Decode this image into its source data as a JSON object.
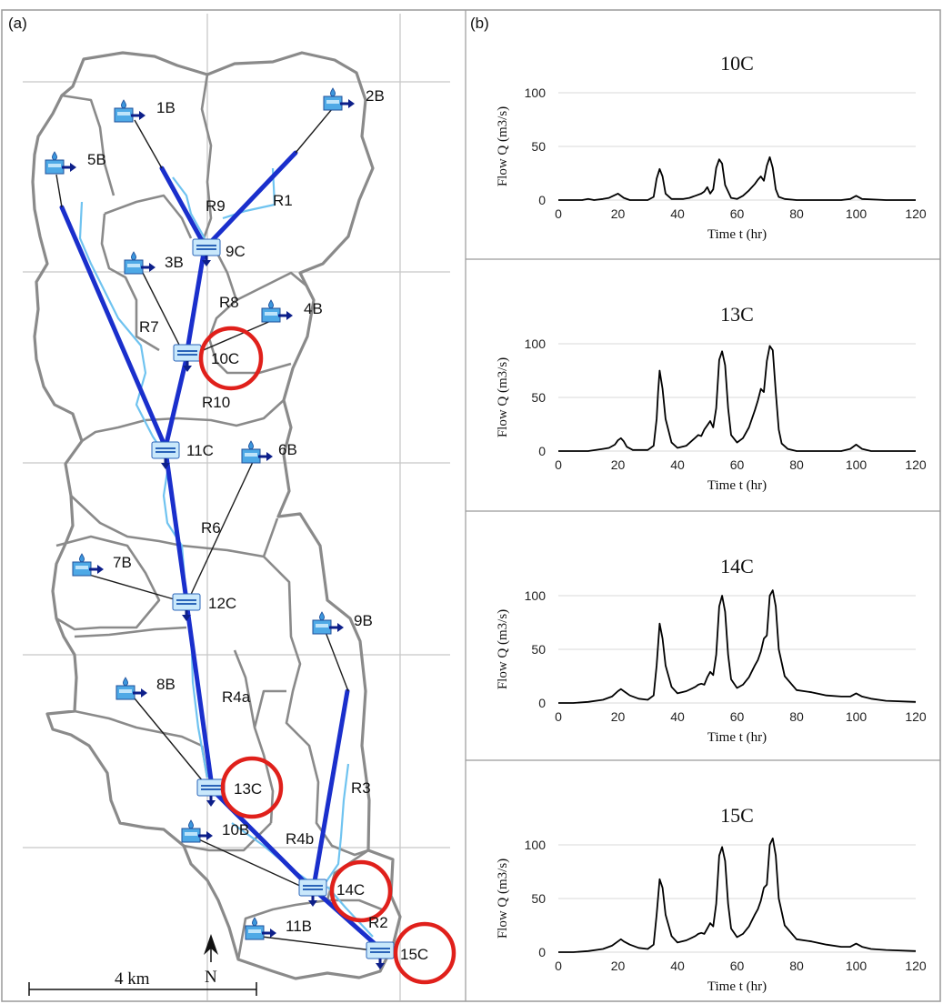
{
  "panel_a_label": "(a)",
  "panel_b_label": "(b)",
  "map": {
    "nodes": [
      {
        "id": "1B"
      },
      {
        "id": "2B"
      },
      {
        "id": "5B"
      },
      {
        "id": "3B"
      },
      {
        "id": "9C"
      },
      {
        "id": "4B"
      },
      {
        "id": "10C"
      },
      {
        "id": "11C"
      },
      {
        "id": "6B"
      },
      {
        "id": "7B"
      },
      {
        "id": "12C"
      },
      {
        "id": "9B"
      },
      {
        "id": "8B"
      },
      {
        "id": "13C"
      },
      {
        "id": "10B"
      },
      {
        "id": "14C"
      },
      {
        "id": "11B"
      },
      {
        "id": "15C"
      }
    ],
    "reaches": [
      "R9",
      "R1",
      "R8",
      "R7",
      "R10",
      "R6",
      "R4a",
      "R3",
      "R4b",
      "R2"
    ],
    "highlighted_junctions": [
      "10C",
      "13C",
      "14C",
      "15C"
    ],
    "scale_bar_label": "4 km",
    "north_label": "N",
    "colors": {
      "reach": "#1a2fcc",
      "stream": "#6fc3f0",
      "boundary": "#8a8a8a",
      "highlight": "#e0201b",
      "grid": "#c8c8c8"
    },
    "icon_names": [
      "subbasin-icon",
      "junction-icon"
    ]
  },
  "chart_data": [
    {
      "type": "line",
      "title": "10C",
      "xlabel": "Time t (hr)",
      "ylabel": "Flow Q (m3/s)",
      "xlim": [
        0,
        120
      ],
      "ylim": [
        0,
        100
      ],
      "x_ticks": [
        0,
        20,
        40,
        60,
        80,
        100,
        120
      ],
      "y_ticks": [
        0,
        50,
        100
      ],
      "grid": "horizontal",
      "series": [
        {
          "x": [
            0,
            8,
            10,
            12,
            15,
            17,
            20,
            22,
            24,
            30,
            32,
            33,
            34,
            35,
            36,
            38,
            42,
            44,
            46,
            48,
            49,
            50,
            51,
            52,
            53,
            54,
            55,
            56,
            58,
            60,
            62,
            64,
            66,
            67,
            68,
            69,
            70,
            71,
            72,
            73,
            74,
            76,
            80,
            95,
            98,
            100,
            102,
            110,
            120
          ],
          "y": [
            0,
            0,
            1,
            0,
            1,
            2,
            6,
            2,
            0,
            0,
            3,
            20,
            29,
            22,
            6,
            1,
            1,
            2,
            4,
            6,
            8,
            12,
            6,
            10,
            30,
            38,
            34,
            14,
            2,
            1,
            4,
            9,
            15,
            19,
            22,
            18,
            32,
            40,
            30,
            10,
            3,
            1,
            0,
            0,
            1,
            4,
            1,
            0,
            0
          ]
        }
      ]
    },
    {
      "type": "line",
      "title": "13C",
      "xlabel": "Time t (hr)",
      "ylabel": "Flow Q (m3/s)",
      "xlim": [
        0,
        120
      ],
      "ylim": [
        0,
        100
      ],
      "x_ticks": [
        0,
        20,
        40,
        60,
        80,
        100,
        120
      ],
      "y_ticks": [
        0,
        50,
        100
      ],
      "grid": "horizontal",
      "series": [
        {
          "x": [
            0,
            10,
            15,
            17,
            19,
            20,
            21,
            22,
            23,
            25,
            30,
            32,
            33,
            33.5,
            34,
            35,
            36,
            38,
            40,
            43,
            45,
            47,
            48,
            49,
            50,
            51,
            52,
            53,
            54,
            55,
            56,
            57,
            58,
            60,
            62,
            64,
            66,
            67,
            68,
            69,
            70,
            71,
            72,
            73,
            74,
            75,
            77,
            80,
            95,
            98,
            100,
            102,
            105,
            120
          ],
          "y": [
            0,
            0,
            2,
            3,
            6,
            10,
            12,
            9,
            4,
            1,
            1,
            5,
            30,
            55,
            75,
            58,
            30,
            8,
            3,
            5,
            10,
            15,
            14,
            20,
            24,
            28,
            22,
            40,
            85,
            93,
            80,
            40,
            15,
            8,
            12,
            22,
            38,
            47,
            58,
            55,
            84,
            98,
            94,
            55,
            20,
            7,
            2,
            0,
            0,
            2,
            6,
            2,
            0,
            0
          ]
        }
      ]
    },
    {
      "type": "line",
      "title": "14C",
      "xlabel": "Time t (hr)",
      "ylabel": "Flow Q (m3/s)",
      "xlim": [
        0,
        120
      ],
      "ylim": [
        0,
        100
      ],
      "x_ticks": [
        0,
        20,
        40,
        60,
        80,
        100,
        120
      ],
      "y_ticks": [
        0,
        50,
        100
      ],
      "grid": "horizontal",
      "series": [
        {
          "x": [
            0,
            5,
            10,
            15,
            18,
            20,
            21,
            22,
            24,
            27,
            30,
            32,
            33,
            34,
            35,
            36,
            38,
            40,
            43,
            46,
            47,
            48,
            49,
            50,
            51,
            52,
            53,
            54,
            55,
            56,
            57,
            58,
            60,
            62,
            64,
            66,
            67,
            68,
            69,
            70,
            71,
            72,
            73,
            74,
            76,
            80,
            85,
            90,
            95,
            98,
            100,
            102,
            105,
            110,
            120
          ],
          "y": [
            0,
            0,
            1,
            3,
            6,
            11,
            13,
            11,
            7,
            4,
            3,
            7,
            35,
            74,
            60,
            35,
            15,
            9,
            11,
            15,
            17,
            18,
            17,
            24,
            29,
            26,
            45,
            90,
            100,
            85,
            45,
            22,
            14,
            17,
            24,
            35,
            40,
            48,
            60,
            63,
            100,
            105,
            90,
            50,
            25,
            12,
            10,
            7,
            6,
            6,
            9,
            6,
            4,
            2,
            1
          ]
        }
      ]
    },
    {
      "type": "line",
      "title": "15C",
      "xlabel": "Time t (hr)",
      "ylabel": "Flow Q (m3/s)",
      "xlim": [
        0,
        120
      ],
      "ylim": [
        0,
        100
      ],
      "x_ticks": [
        0,
        20,
        40,
        60,
        80,
        100,
        120
      ],
      "y_ticks": [
        0,
        50,
        100
      ],
      "grid": "horizontal",
      "series": [
        {
          "x": [
            0,
            5,
            10,
            15,
            18,
            20,
            21,
            22,
            24,
            27,
            30,
            32,
            33,
            34,
            35,
            36,
            38,
            40,
            43,
            46,
            47,
            48,
            49,
            50,
            51,
            52,
            53,
            54,
            55,
            56,
            57,
            58,
            60,
            62,
            64,
            66,
            67,
            68,
            69,
            70,
            71,
            72,
            73,
            74,
            76,
            80,
            85,
            90,
            95,
            98,
            100,
            102,
            105,
            110,
            120
          ],
          "y": [
            0,
            0,
            1,
            3,
            6,
            10,
            12,
            10,
            7,
            4,
            3,
            7,
            35,
            68,
            60,
            35,
            15,
            9,
            11,
            15,
            17,
            18,
            17,
            22,
            27,
            24,
            45,
            90,
            98,
            85,
            45,
            22,
            14,
            17,
            24,
            35,
            40,
            48,
            60,
            63,
            100,
            106,
            90,
            50,
            25,
            12,
            10,
            7,
            5,
            5,
            8,
            5,
            3,
            2,
            1
          ]
        }
      ]
    }
  ]
}
